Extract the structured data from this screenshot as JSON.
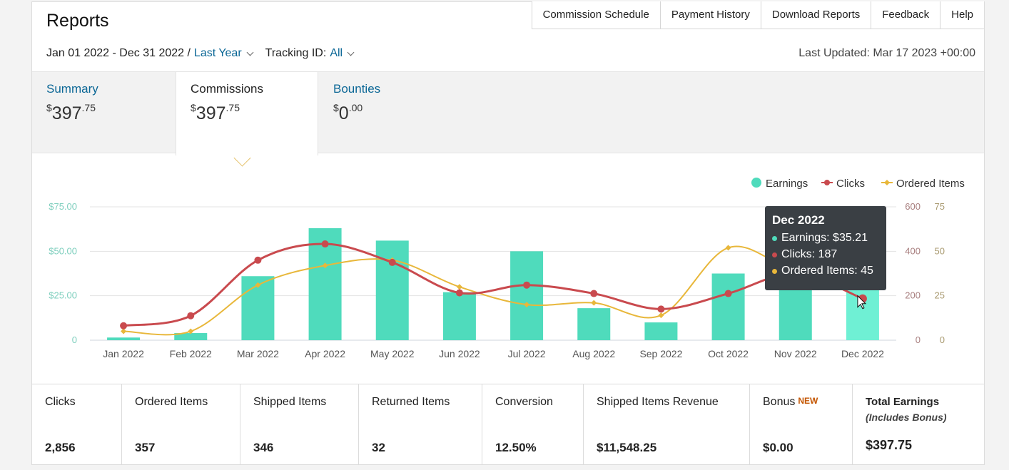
{
  "header": {
    "title": "Reports",
    "nav": [
      "Commission Schedule",
      "Payment History",
      "Download Reports",
      "Feedback",
      "Help"
    ],
    "date_range": "Jan 01 2022 - Dec 31 2022 /",
    "range_preset": "Last Year",
    "tracking_label": "Tracking ID:",
    "tracking_value": "All",
    "last_updated": "Last Updated: Mar 17 2023 +00:00"
  },
  "tabs": [
    {
      "name": "Summary",
      "currency": "$",
      "whole": "397",
      "cents": ".75",
      "active": false
    },
    {
      "name": "Commissions",
      "currency": "$",
      "whole": "397",
      "cents": ".75",
      "active": true
    },
    {
      "name": "Bounties",
      "currency": "$",
      "whole": "0",
      "cents": ".00",
      "active": false
    }
  ],
  "chart_data": {
    "type": "bar+line",
    "categories": [
      "Jan 2022",
      "Feb 2022",
      "Mar 2022",
      "Apr 2022",
      "May 2022",
      "Jun 2022",
      "Jul 2022",
      "Aug 2022",
      "Sep 2022",
      "Oct 2022",
      "Nov 2022",
      "Dec 2022"
    ],
    "legend": [
      "Earnings",
      "Clicks",
      "Ordered Items"
    ],
    "legend_position": "top-right",
    "series": [
      {
        "name": "Earnings",
        "type": "bar",
        "axis": "left",
        "color": "#4fdbbc",
        "values": [
          1.5,
          4,
          36,
          63,
          56,
          27,
          50,
          18,
          10,
          37.5,
          40,
          35.21
        ]
      },
      {
        "name": "Clicks",
        "type": "line",
        "axis": "right1",
        "color": "#c94a4e",
        "values": [
          65,
          110,
          360,
          433,
          350,
          213,
          248,
          210,
          140,
          210,
          300,
          187
        ]
      },
      {
        "name": "Ordered Items",
        "type": "line",
        "axis": "right2",
        "color": "#e8b73a",
        "values": [
          5,
          5,
          31,
          42,
          45,
          30,
          20,
          21,
          14,
          52,
          40,
          45
        ]
      }
    ],
    "left_axis": {
      "ticks": [
        "0",
        "$25.00",
        "$50.00",
        "$75.00"
      ],
      "range": [
        0,
        75
      ]
    },
    "right1_axis": {
      "ticks": [
        "0",
        "200",
        "400",
        "600"
      ],
      "range": [
        0,
        600
      ]
    },
    "right2_axis": {
      "ticks": [
        "0",
        "25",
        "50",
        "75"
      ],
      "range": [
        0,
        75
      ]
    },
    "grid": true
  },
  "tooltip": {
    "title": "Dec 2022",
    "rows": [
      {
        "text": "Earnings: $35.21",
        "color": "#4fdbbc"
      },
      {
        "text": "Clicks: 187",
        "color": "#c94a4e"
      },
      {
        "text": "Ordered Items: 45",
        "color": "#e8b73a"
      }
    ]
  },
  "stats": [
    {
      "label": "Clicks",
      "value": "2,856"
    },
    {
      "label": "Ordered Items",
      "value": "357"
    },
    {
      "label": "Shipped Items",
      "value": "346"
    },
    {
      "label": "Returned Items",
      "value": "32"
    },
    {
      "label": "Conversion",
      "value": "12.50%"
    },
    {
      "label": "Shipped Items Revenue",
      "value": "$11,548.25"
    },
    {
      "label": "Bonus",
      "badge": "NEW",
      "value": "$0.00"
    },
    {
      "label": "Total Earnings",
      "sub": "(Includes Bonus)",
      "value": "$397.75"
    }
  ]
}
